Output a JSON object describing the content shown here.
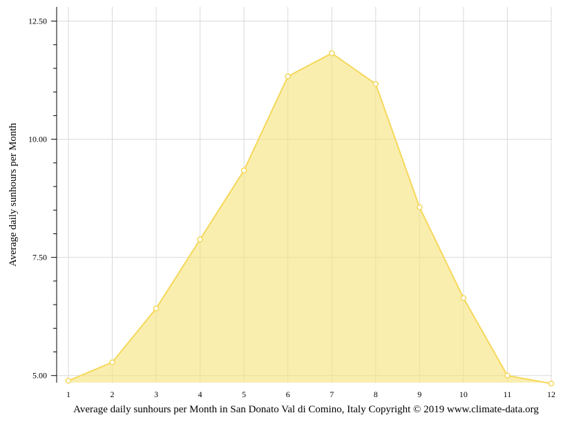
{
  "chart_data": {
    "type": "area",
    "x": [
      1,
      2,
      3,
      4,
      5,
      6,
      7,
      8,
      9,
      10,
      11,
      12
    ],
    "x_tick_labels": [
      "1",
      "2",
      "3",
      "4",
      "5",
      "6",
      "7",
      "8",
      "9",
      "10",
      "11",
      "12"
    ],
    "values": [
      4.89,
      5.28,
      6.42,
      7.88,
      9.34,
      11.33,
      11.82,
      11.17,
      8.56,
      6.64,
      5.0,
      4.83
    ],
    "ylim": [
      4.85,
      12.8
    ],
    "y_ticks": [
      5.0,
      7.5,
      10.0,
      12.5
    ],
    "y_tick_labels": [
      "5.00",
      "7.50",
      "10.00",
      "12.50"
    ],
    "xlabel": "Average daily sunhours per Month in San Donato Val di Comino, Italy Copyright © 2019 www.climate-data.org",
    "ylabel": "Average daily sunhours per Month",
    "grid": true,
    "colors": {
      "fill": "#f7e27a",
      "line": "#f5d75a",
      "marker_fill": "#ffffff",
      "grid": "#d9d9d9",
      "axis": "#000000"
    }
  }
}
